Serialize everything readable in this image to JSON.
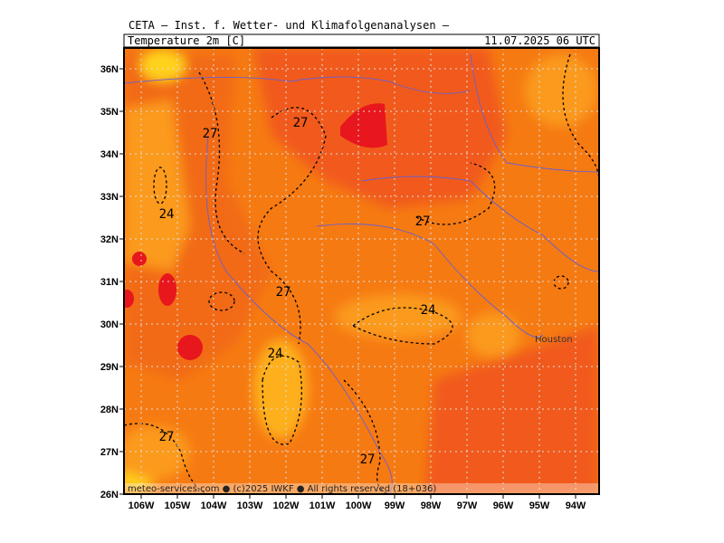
{
  "header": {
    "title": "CETA — Inst. f. Wetter- und Klimafolgenanalysen —",
    "field": "Temperature_2m_[C]",
    "valid": "11.07.2025 06 UTC"
  },
  "latitude_labels": [
    "36N",
    "35N",
    "34N",
    "33N",
    "32N",
    "31N",
    "30N",
    "29N",
    "28N",
    "27N",
    "26N"
  ],
  "longitude_labels": [
    "106W",
    "105W",
    "104W",
    "103W",
    "102W",
    "101W",
    "100W",
    "99W",
    "98W",
    "97W",
    "96W",
    "95W",
    "94W"
  ],
  "contour_labels": [
    "27",
    "27",
    "24",
    "27",
    "27",
    "24",
    "24",
    "27",
    "27"
  ],
  "place": "Houston",
  "footer": "meteo-services.com ● (c)2025 IWKF ● All rights reserved (18+036)"
}
